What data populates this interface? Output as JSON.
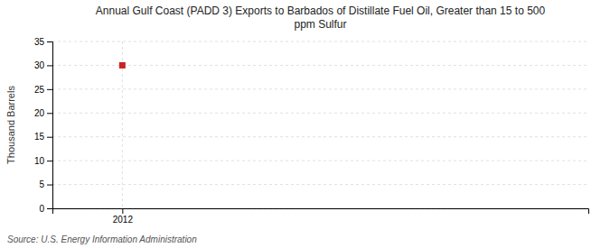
{
  "chart_data": {
    "type": "scatter",
    "title": "Annual Gulf Coast (PADD 3) Exports to Barbados of Distillate Fuel Oil, Greater than 15 to 500\nppm Sulfur",
    "ylabel": "Thousand Barrels",
    "annotations": [
      "Source: U.S. Energy Information Administration"
    ],
    "x": [
      2012
    ],
    "values": [
      30
    ],
    "color": "#cc2222",
    "marker": "square",
    "xlim": [
      2011.7,
      2014.0
    ],
    "xticks": [
      2012
    ],
    "ylim": [
      0,
      35
    ],
    "yticks": [
      0,
      5,
      10,
      15,
      20,
      25,
      30,
      35
    ],
    "grid": true
  }
}
